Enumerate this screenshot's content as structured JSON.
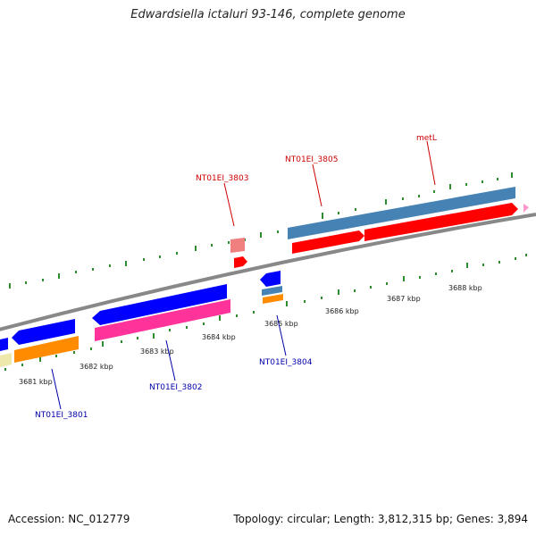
{
  "title": "Edwardsiella ictaluri 93-146, complete genome",
  "accession": "Accession: NC_012779",
  "summary": "Topology: circular; Length: 3,812,315 bp; Genes: 3,894",
  "kbp_labels": [
    "3681 kbp",
    "3682 kbp",
    "3683 kbp",
    "3684 kbp",
    "3685 kbp",
    "3686 kbp",
    "3687 kbp",
    "3688 kbp"
  ],
  "gene_labels": {
    "top": [
      "NT01EI_3803",
      "NT01EI_3805",
      "metL"
    ],
    "bottom": [
      "NT01EI_3801",
      "NT01EI_3802",
      "NT01EI_3804"
    ]
  },
  "colors": {
    "forward_cds": "#ff0000",
    "forward_gene": "#4682b4",
    "reverse_cds": "#0000ff",
    "reverse_gene_orange": "#ff8c00",
    "reverse_gene_pink": "#ff3399",
    "label_forward": "#cc0000",
    "label_reverse": "#0000aa",
    "ticks": "#2e8b2e",
    "backbone": "#888888"
  }
}
